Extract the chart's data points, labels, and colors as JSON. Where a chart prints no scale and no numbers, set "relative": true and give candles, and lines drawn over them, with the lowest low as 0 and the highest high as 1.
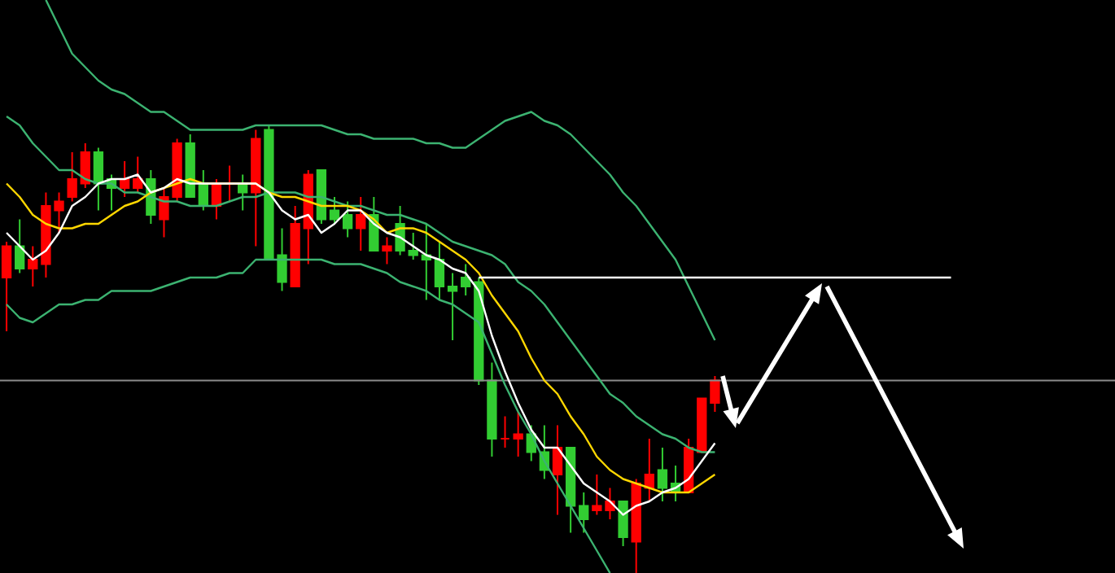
{
  "chart_data": {
    "type": "candlestick",
    "relative": true,
    "marker": "none",
    "categories": [
      null,
      null,
      null,
      null,
      null,
      null,
      null,
      null,
      null,
      null,
      null,
      null,
      null,
      null,
      null,
      null,
      null,
      null,
      null,
      null,
      null,
      null,
      null,
      null,
      null,
      null,
      null,
      null,
      null,
      null,
      null,
      null,
      null,
      null,
      null,
      null,
      null,
      null,
      null,
      null,
      null,
      null,
      null,
      null,
      null,
      null,
      null,
      null,
      null,
      null,
      null,
      null,
      null,
      null,
      null,
      null,
      null,
      null,
      null,
      null,
      null,
      null,
      null,
      null,
      null,
      null,
      null,
      null,
      null,
      null,
      null,
      null,
      null,
      null,
      null,
      null,
      null,
      null,
      null,
      null,
      null,
      null,
      null,
      null,
      null
    ],
    "ohlc": [
      [
        0.66,
        0.74,
        0.54,
        0.73
      ],
      [
        0.73,
        0.79,
        0.67,
        0.68
      ],
      [
        0.68,
        0.73,
        0.64,
        0.7
      ],
      [
        0.69,
        0.85,
        0.66,
        0.82
      ],
      [
        0.81,
        0.85,
        0.76,
        0.83
      ],
      [
        0.84,
        0.94,
        0.83,
        0.88
      ],
      [
        0.87,
        0.96,
        0.86,
        0.94
      ],
      [
        0.94,
        0.95,
        0.81,
        0.87
      ],
      [
        0.88,
        0.89,
        0.81,
        0.86
      ],
      [
        0.86,
        0.92,
        0.84,
        0.88
      ],
      [
        0.86,
        0.93,
        0.85,
        0.88
      ],
      [
        0.88,
        0.9,
        0.78,
        0.8
      ],
      [
        0.79,
        0.86,
        0.75,
        0.84
      ],
      [
        0.84,
        0.97,
        0.83,
        0.96
      ],
      [
        0.96,
        0.98,
        0.84,
        0.84
      ],
      [
        0.87,
        0.9,
        0.81,
        0.82
      ],
      [
        0.82,
        0.88,
        0.79,
        0.87
      ],
      [
        0.87,
        0.91,
        0.83,
        0.87
      ],
      [
        0.87,
        0.89,
        0.81,
        0.85
      ],
      [
        0.85,
        0.99,
        0.73,
        0.97
      ],
      [
        0.99,
        1,
        0.7,
        0.7
      ],
      [
        0.71,
        0.77,
        0.63,
        0.65
      ],
      [
        0.64,
        0.82,
        0.64,
        0.78
      ],
      [
        0.77,
        0.9,
        0.69,
        0.89
      ],
      [
        0.9,
        0.9,
        0.78,
        0.79
      ],
      [
        0.81,
        0.84,
        0.78,
        0.79
      ],
      [
        0.8,
        0.83,
        0.75,
        0.77
      ],
      [
        0.77,
        0.84,
        0.72,
        0.8
      ],
      [
        0.8,
        0.84,
        0.72,
        0.72
      ],
      [
        0.72,
        0.75,
        0.69,
        0.73
      ],
      [
        0.78,
        0.82,
        0.71,
        0.72
      ],
      [
        0.72,
        0.76,
        0.7,
        0.71
      ],
      [
        0.71,
        0.78,
        0.61,
        0.7
      ],
      [
        0.7,
        0.74,
        0.61,
        0.64
      ],
      [
        0.64,
        0.67,
        0.52,
        0.63
      ],
      [
        0.66,
        0.69,
        0.62,
        0.64
      ],
      [
        0.65,
        0.66,
        0.42,
        0.43
      ],
      [
        0.43,
        0.47,
        0.26,
        0.3
      ],
      [
        0.3,
        0.35,
        0.28,
        0.3
      ],
      [
        0.3,
        0.36,
        0.26,
        0.31
      ],
      [
        0.31,
        0.33,
        0.25,
        0.27
      ],
      [
        0.27,
        0.33,
        0.21,
        0.23
      ],
      [
        0.22,
        0.33,
        0.13,
        0.28
      ],
      [
        0.28,
        0.28,
        0.09,
        0.15
      ],
      [
        0.15,
        0.18,
        0.09,
        0.12
      ],
      [
        0.14,
        0.22,
        0.13,
        0.15
      ],
      [
        0.14,
        0.19,
        0.12,
        0.16
      ],
      [
        0.16,
        0.16,
        0.06,
        0.08
      ],
      [
        0.07,
        0.21,
        0,
        0.2
      ],
      [
        0.19,
        0.3,
        0.16,
        0.22
      ],
      [
        0.23,
        0.28,
        0.16,
        0.19
      ],
      [
        0.2,
        0.24,
        0.16,
        0.18
      ],
      [
        0.18,
        0.3,
        0.18,
        0.28
      ],
      [
        0.27,
        0.39,
        0.27,
        0.39
      ],
      [
        0.38,
        0.44,
        0.36,
        0.43
      ],
      null,
      null,
      null,
      null,
      null,
      null,
      null,
      null,
      null,
      null,
      null,
      null,
      null,
      null,
      null,
      null,
      null,
      null,
      null,
      null,
      null,
      null,
      null,
      null,
      null,
      null,
      null,
      null,
      null,
      null
    ],
    "colors": [
      "#ff0000",
      "#32cd32",
      "#ff0000",
      "#ff0000",
      "#ff0000",
      "#ff0000",
      "#ff0000",
      "#32cd32",
      "#32cd32",
      "#ff0000",
      "#ff0000",
      "#32cd32",
      "#ff0000",
      "#ff0000",
      "#32cd32",
      "#32cd32",
      "#ff0000",
      "#ff0000",
      "#32cd32",
      "#ff0000",
      "#32cd32",
      "#32cd32",
      "#ff0000",
      "#ff0000",
      "#32cd32",
      "#32cd32",
      "#32cd32",
      "#ff0000",
      "#32cd32",
      "#ff0000",
      "#32cd32",
      "#32cd32",
      "#32cd32",
      "#32cd32",
      "#32cd32",
      "#32cd32",
      "#32cd32",
      "#32cd32",
      "#ff0000",
      "#ff0000",
      "#32cd32",
      "#32cd32",
      "#ff0000",
      "#32cd32",
      "#32cd32",
      "#ff0000",
      "#ff0000",
      "#32cd32",
      "#ff0000",
      "#ff0000",
      "#32cd32",
      "#32cd32",
      "#ff0000",
      "#ff0000",
      "#ff0000",
      null,
      null,
      null,
      null,
      null,
      null,
      null,
      null,
      null,
      null,
      null,
      null,
      null,
      null,
      null,
      null,
      null,
      null,
      null,
      null,
      null,
      null,
      null,
      null,
      null,
      null,
      null,
      null,
      null,
      null
    ],
    "series": [
      {
        "type": "line",
        "color": "#3cb371",
        "values": [
          null,
          null,
          null,
          1.28,
          1.22,
          1.16,
          1.13,
          1.1,
          1.08,
          1.07,
          1.05,
          1.03,
          1.03,
          1.01,
          0.99,
          0.99,
          0.99,
          0.99,
          0.99,
          1.0,
          1.0,
          1.0,
          1.0,
          1.0,
          1.0,
          0.99,
          0.98,
          0.98,
          0.97,
          0.97,
          0.97,
          0.97,
          0.96,
          0.96,
          0.95,
          0.95,
          0.97,
          0.99,
          1.01,
          1.02,
          1.03,
          1.01,
          1.0,
          0.98,
          0.95,
          0.92,
          0.89,
          0.85,
          0.82,
          0.78,
          0.74,
          0.7,
          0.64,
          0.58,
          0.52,
          null,
          null,
          null,
          null,
          null,
          null,
          null,
          null,
          null,
          null,
          null,
          null,
          null,
          null,
          null,
          null,
          null,
          null,
          null,
          null,
          null,
          null,
          null,
          null,
          null,
          null,
          null,
          null,
          null,
          null
        ]
      },
      {
        "type": "line",
        "color": "#3cb371",
        "values": [
          1.02,
          1.0,
          0.96,
          0.93,
          0.9,
          0.9,
          0.88,
          0.87,
          0.87,
          0.85,
          0.85,
          0.84,
          0.83,
          0.83,
          0.82,
          0.82,
          0.82,
          0.83,
          0.84,
          0.84,
          0.85,
          0.85,
          0.85,
          0.84,
          0.84,
          0.83,
          0.82,
          0.82,
          0.81,
          0.8,
          0.8,
          0.79,
          0.78,
          0.76,
          0.74,
          0.73,
          0.72,
          0.71,
          0.69,
          0.65,
          0.63,
          0.6,
          0.56,
          0.52,
          0.48,
          0.44,
          0.4,
          0.38,
          0.35,
          0.33,
          0.31,
          0.3,
          0.28,
          0.27,
          0.27,
          null,
          null,
          null,
          null,
          null,
          null,
          null,
          null,
          null,
          null,
          null,
          null,
          null,
          null,
          null,
          null,
          null,
          null,
          null,
          null,
          null,
          null,
          null,
          null,
          null,
          null,
          null,
          null,
          null,
          null
        ]
      },
      {
        "type": "line",
        "color": "#3cb371",
        "values": [
          0.6,
          0.57,
          0.56,
          0.58,
          0.6,
          0.6,
          0.61,
          0.61,
          0.63,
          0.63,
          0.63,
          0.63,
          0.64,
          0.65,
          0.66,
          0.66,
          0.66,
          0.67,
          0.67,
          0.7,
          0.7,
          0.7,
          0.7,
          0.7,
          0.7,
          0.69,
          0.69,
          0.69,
          0.68,
          0.67,
          0.65,
          0.64,
          0.63,
          0.61,
          0.6,
          0.58,
          0.56,
          0.49,
          0.42,
          0.36,
          0.31,
          0.25,
          0.2,
          0.15,
          0.1,
          0.05,
          0.0,
          null,
          null,
          null,
          null,
          null,
          null,
          null,
          null,
          null,
          null,
          null,
          null,
          null,
          null,
          null,
          null,
          null,
          null,
          null,
          null,
          null,
          null,
          null,
          null,
          null,
          null,
          null,
          null,
          null,
          null,
          null,
          null,
          null,
          null,
          null,
          null,
          null,
          null
        ]
      },
      {
        "type": "line",
        "color": "#ffd700",
        "values": [
          0.87,
          0.84,
          0.8,
          0.78,
          0.77,
          0.77,
          0.78,
          0.78,
          0.8,
          0.82,
          0.83,
          0.85,
          0.86,
          0.87,
          0.88,
          0.87,
          0.87,
          0.87,
          0.87,
          0.87,
          0.85,
          0.84,
          0.84,
          0.83,
          0.82,
          0.82,
          0.82,
          0.81,
          0.79,
          0.76,
          0.77,
          0.77,
          0.76,
          0.74,
          0.72,
          0.7,
          0.67,
          0.62,
          0.58,
          0.54,
          0.48,
          0.43,
          0.4,
          0.35,
          0.31,
          0.26,
          0.23,
          0.21,
          0.2,
          0.19,
          0.18,
          0.18,
          0.18,
          0.2,
          0.22,
          null,
          null,
          null,
          null,
          null,
          null,
          null,
          null,
          null,
          null,
          null,
          null,
          null,
          null,
          null,
          null,
          null,
          null,
          null,
          null,
          null,
          null,
          null,
          null,
          null,
          null,
          null,
          null,
          null,
          null
        ]
      },
      {
        "type": "line",
        "color": "#ffffff",
        "values": [
          0.76,
          0.73,
          0.7,
          0.72,
          0.76,
          0.82,
          0.84,
          0.87,
          0.88,
          0.88,
          0.89,
          0.85,
          0.86,
          0.88,
          0.87,
          0.87,
          0.87,
          0.87,
          0.87,
          0.87,
          0.85,
          0.81,
          0.79,
          0.8,
          0.76,
          0.78,
          0.81,
          0.81,
          0.78,
          0.76,
          0.75,
          0.73,
          0.71,
          0.7,
          0.68,
          0.67,
          0.63,
          0.53,
          0.45,
          0.38,
          0.32,
          0.28,
          0.28,
          0.24,
          0.2,
          0.18,
          0.16,
          0.13,
          0.15,
          0.16,
          0.18,
          0.19,
          0.21,
          0.25,
          0.29,
          null,
          null,
          null,
          null,
          null,
          null,
          null,
          null,
          null,
          null,
          null,
          null,
          null,
          null,
          null,
          null,
          null,
          null,
          null,
          null,
          null,
          null,
          null,
          null,
          null,
          null,
          null,
          null,
          null,
          null
        ]
      },
      {
        "type": "line",
        "color": "#ffffff",
        "values": [
          null,
          null,
          null,
          null,
          null,
          null,
          null,
          null,
          null,
          null,
          null,
          null,
          null,
          null,
          null,
          null,
          null,
          null,
          null,
          null,
          null,
          null,
          null,
          null,
          null,
          null,
          null,
          null,
          null,
          null,
          null,
          null,
          null,
          null,
          null,
          null,
          0.66,
          0.66,
          0.66,
          0.66,
          0.66,
          0.66,
          0.66,
          0.66,
          0.66,
          0.66,
          0.66,
          0.66,
          0.66,
          0.66,
          0.66,
          0.66,
          0.66,
          0.66,
          0.66,
          0.66,
          0.66,
          0.66,
          0.66,
          0.66,
          0.66,
          0.66,
          0.66,
          0.66,
          0.66,
          0.66,
          0.66,
          0.66,
          0.66,
          0.66,
          0.66,
          0.66,
          0.66,
          null,
          null,
          null,
          null,
          null,
          null,
          null,
          null,
          null,
          null,
          null,
          null
        ]
      }
    ],
    "ref_lines": [
      {
        "axis": "y",
        "value": 0.43,
        "color": "#8c8c8c"
      }
    ]
  }
}
